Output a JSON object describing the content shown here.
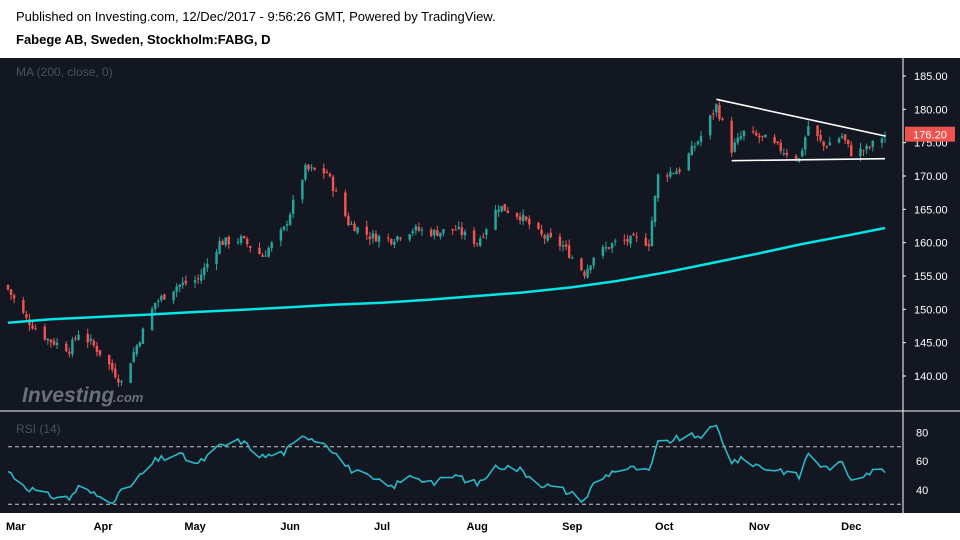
{
  "header": {
    "line1": "Published on Investing.com, 12/Dec/2017 - 9:56:26 GMT, Powered by TradingView.",
    "line2": "Fabege AB, Sweden, Stockholm:FABG, D"
  },
  "panels": {
    "price_label": "MA (200, close, 0)",
    "rsi_label": "RSI (14)"
  },
  "last_price_label": "176.20",
  "logo": {
    "main": "Investing",
    "suffix": ".com"
  },
  "colors": {
    "background": "#131722",
    "up": "#26a69a",
    "down": "#ef5350",
    "ma": "#00e5e5",
    "rsi": "#2ab7c6",
    "trendline": "#ffffff",
    "price_badge": "#ef5350"
  },
  "chart_data": [
    {
      "type": "candlestick",
      "title": "Fabege AB, Sweden, Stockholm:FABG, D",
      "date_range": [
        "2017-03-01",
        "2017-12-12"
      ],
      "x_tick_labels": [
        "Mar",
        "Apr",
        "May",
        "Jun",
        "Jul",
        "Aug",
        "Sep",
        "Oct",
        "Nov",
        "Dec"
      ],
      "y_ticks": [
        140,
        145,
        150,
        155,
        160,
        165,
        170,
        175,
        180,
        185
      ],
      "ylim": [
        135.5,
        186.5
      ],
      "last_close": 176.2,
      "grid": false,
      "close_path": [
        [
          "2017-03-01",
          153.0
        ],
        [
          "2017-03-07",
          148.5
        ],
        [
          "2017-03-14",
          145.5
        ],
        [
          "2017-03-21",
          144.0
        ],
        [
          "2017-03-24",
          146.5
        ],
        [
          "2017-03-28",
          145.0
        ],
        [
          "2017-03-31",
          143.5
        ],
        [
          "2017-04-04",
          141.0
        ],
        [
          "2017-04-07",
          139.0
        ],
        [
          "2017-04-11",
          143.5
        ],
        [
          "2017-04-18",
          151.0
        ],
        [
          "2017-04-25",
          153.5
        ],
        [
          "2017-05-02",
          154.5
        ],
        [
          "2017-05-09",
          160.0
        ],
        [
          "2017-05-16",
          160.5
        ],
        [
          "2017-05-23",
          158.0
        ],
        [
          "2017-05-30",
          162.0
        ],
        [
          "2017-06-06",
          171.0
        ],
        [
          "2017-06-13",
          170.5
        ],
        [
          "2017-06-20",
          163.0
        ],
        [
          "2017-06-27",
          161.0
        ],
        [
          "2017-07-04",
          160.5
        ],
        [
          "2017-07-11",
          162.0
        ],
        [
          "2017-07-18",
          161.5
        ],
        [
          "2017-07-25",
          162.0
        ],
        [
          "2017-08-01",
          160.0
        ],
        [
          "2017-08-08",
          165.5
        ],
        [
          "2017-08-15",
          164.0
        ],
        [
          "2017-08-22",
          161.0
        ],
        [
          "2017-08-29",
          159.5
        ],
        [
          "2017-09-05",
          155.5
        ],
        [
          "2017-09-08",
          158.0
        ],
        [
          "2017-09-15",
          160.0
        ],
        [
          "2017-09-22",
          160.5
        ],
        [
          "2017-09-26",
          160.0
        ],
        [
          "2017-09-29",
          170.0
        ],
        [
          "2017-10-06",
          171.0
        ],
        [
          "2017-10-13",
          176.0
        ],
        [
          "2017-10-18",
          180.5
        ],
        [
          "2017-10-23",
          174.0
        ],
        [
          "2017-10-27",
          176.5
        ],
        [
          "2017-11-03",
          175.5
        ],
        [
          "2017-11-08",
          174.0
        ],
        [
          "2017-11-14",
          172.5
        ],
        [
          "2017-11-17",
          177.5
        ],
        [
          "2017-11-22",
          174.5
        ],
        [
          "2017-11-28",
          176.0
        ],
        [
          "2017-12-01",
          173.5
        ],
        [
          "2017-12-06",
          174.0
        ],
        [
          "2017-12-12",
          176.2
        ]
      ],
      "ma200": [
        [
          "2017-03-01",
          148.0
        ],
        [
          "2017-03-15",
          148.5
        ],
        [
          "2017-04-01",
          148.9
        ],
        [
          "2017-04-15",
          149.2
        ],
        [
          "2017-05-01",
          149.6
        ],
        [
          "2017-05-15",
          149.9
        ],
        [
          "2017-06-01",
          150.3
        ],
        [
          "2017-06-15",
          150.7
        ],
        [
          "2017-07-01",
          151.0
        ],
        [
          "2017-07-15",
          151.4
        ],
        [
          "2017-08-01",
          152.0
        ],
        [
          "2017-08-15",
          152.5
        ],
        [
          "2017-09-01",
          153.3
        ],
        [
          "2017-09-15",
          154.2
        ],
        [
          "2017-10-01",
          155.5
        ],
        [
          "2017-10-15",
          156.8
        ],
        [
          "2017-11-01",
          158.4
        ],
        [
          "2017-11-15",
          159.8
        ],
        [
          "2017-12-01",
          161.2
        ],
        [
          "2017-12-12",
          162.2
        ]
      ],
      "trendlines": [
        {
          "from": [
            "2017-10-18",
            181.5
          ],
          "to": [
            "2017-12-12",
            176.0
          ]
        },
        {
          "from": [
            "2017-10-23",
            172.3
          ],
          "to": [
            "2017-12-12",
            172.6
          ]
        }
      ]
    },
    {
      "type": "line",
      "title": "RSI (14)",
      "y_ticks": [
        40,
        60,
        80
      ],
      "reference_lines": [
        30,
        70
      ],
      "ylim": [
        26,
        90
      ],
      "values": [
        [
          "2017-03-01",
          53
        ],
        [
          "2017-03-07",
          42
        ],
        [
          "2017-03-14",
          36
        ],
        [
          "2017-03-21",
          34
        ],
        [
          "2017-03-24",
          42
        ],
        [
          "2017-03-28",
          38
        ],
        [
          "2017-03-31",
          35
        ],
        [
          "2017-04-04",
          33
        ],
        [
          "2017-04-11",
          45
        ],
        [
          "2017-04-18",
          60
        ],
        [
          "2017-04-25",
          65
        ],
        [
          "2017-05-02",
          58
        ],
        [
          "2017-05-09",
          70
        ],
        [
          "2017-05-16",
          74
        ],
        [
          "2017-05-23",
          63
        ],
        [
          "2017-05-30",
          66
        ],
        [
          "2017-06-06",
          78
        ],
        [
          "2017-06-13",
          72
        ],
        [
          "2017-06-20",
          55
        ],
        [
          "2017-06-27",
          48
        ],
        [
          "2017-07-04",
          42
        ],
        [
          "2017-07-11",
          50
        ],
        [
          "2017-07-18",
          45
        ],
        [
          "2017-07-25",
          50
        ],
        [
          "2017-08-01",
          44
        ],
        [
          "2017-08-08",
          57
        ],
        [
          "2017-08-15",
          54
        ],
        [
          "2017-08-22",
          44
        ],
        [
          "2017-08-29",
          40
        ],
        [
          "2017-09-05",
          33
        ],
        [
          "2017-09-08",
          44
        ],
        [
          "2017-09-15",
          54
        ],
        [
          "2017-09-22",
          55
        ],
        [
          "2017-09-26",
          52
        ],
        [
          "2017-09-29",
          72
        ],
        [
          "2017-10-06",
          76
        ],
        [
          "2017-10-13",
          78
        ],
        [
          "2017-10-18",
          84
        ],
        [
          "2017-10-23",
          60
        ],
        [
          "2017-10-27",
          61
        ],
        [
          "2017-11-03",
          55
        ],
        [
          "2017-11-08",
          54
        ],
        [
          "2017-11-14",
          49
        ],
        [
          "2017-11-17",
          66
        ],
        [
          "2017-11-22",
          55
        ],
        [
          "2017-11-28",
          58
        ],
        [
          "2017-12-01",
          48
        ],
        [
          "2017-12-06",
          52
        ],
        [
          "2017-12-12",
          54
        ]
      ]
    }
  ]
}
